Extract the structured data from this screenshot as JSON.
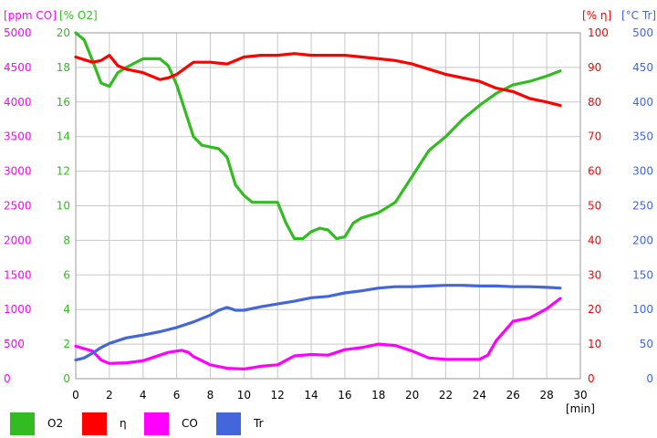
{
  "chart_data": {
    "type": "line",
    "xlabel": "[min]",
    "x_ticks": [
      "0",
      "2",
      "4",
      "6",
      "8",
      "10",
      "12",
      "14",
      "16",
      "18",
      "20",
      "22",
      "24",
      "26",
      "28",
      "30"
    ],
    "xlim": [
      0,
      30
    ],
    "axes": [
      {
        "id": "co",
        "label": "[ppm CO]",
        "color": "#ff00ff",
        "min": 0,
        "max": 5000,
        "ticks": [
          "0",
          "500",
          "1000",
          "1500",
          "2000",
          "2500",
          "3000",
          "3500",
          "4000",
          "4500",
          "5000"
        ]
      },
      {
        "id": "o2",
        "label": "[% O2]",
        "color": "#33bb22",
        "min": 0,
        "max": 20,
        "ticks": [
          "0",
          "2",
          "4",
          "6",
          "8",
          "10",
          "12",
          "14",
          "16",
          "18",
          "20"
        ]
      },
      {
        "id": "eta",
        "label": "[% η]",
        "color": "#ff0000",
        "min": 0,
        "max": 100,
        "ticks": [
          "0",
          "10",
          "20",
          "30",
          "40",
          "50",
          "60",
          "70",
          "80",
          "90",
          "100"
        ]
      },
      {
        "id": "tr",
        "label": "[°C Tr]",
        "color": "#4466dd",
        "min": 0,
        "max": 500,
        "ticks": [
          "0",
          "50",
          "100",
          "150",
          "200",
          "250",
          "300",
          "350",
          "400",
          "450",
          "500"
        ]
      }
    ],
    "series": [
      {
        "name": "O2",
        "axis": "o2",
        "color": "#33bb22",
        "x": [
          0,
          0.5,
          1,
          1.5,
          2,
          2.5,
          3,
          4,
          5,
          5.5,
          6,
          6.5,
          7,
          7.5,
          8,
          8.5,
          9,
          9.5,
          10,
          10.5,
          11,
          11.5,
          12,
          12.5,
          13,
          13.5,
          14,
          14.5,
          15,
          15.5,
          16,
          16.5,
          17,
          18,
          19,
          20,
          21,
          22,
          23,
          24,
          25,
          26,
          27,
          28,
          28.8
        ],
        "y": [
          20,
          19.6,
          18.4,
          17.1,
          16.9,
          17.7,
          18.0,
          18.5,
          18.5,
          18.1,
          17.0,
          15.5,
          14.0,
          13.5,
          13.4,
          13.3,
          12.8,
          11.2,
          10.6,
          10.2,
          10.2,
          10.2,
          10.2,
          9.0,
          8.1,
          8.1,
          8.5,
          8.7,
          8.6,
          8.1,
          8.2,
          9.0,
          9.3,
          9.6,
          10.2,
          11.7,
          13.2,
          14.0,
          15.0,
          15.8,
          16.5,
          17.0,
          17.2,
          17.5,
          17.8
        ]
      },
      {
        "name": "η",
        "axis": "eta",
        "color": "#ff0000",
        "x": [
          0,
          1,
          1.5,
          2,
          2.5,
          3,
          4,
          5,
          5.5,
          6,
          7,
          8,
          9,
          10,
          11,
          12,
          13,
          14,
          16,
          18,
          19,
          20,
          21,
          22,
          23,
          24,
          25,
          26,
          27,
          28,
          28.8
        ],
        "y": [
          93,
          91.5,
          92,
          93.5,
          90.5,
          89.5,
          88.5,
          86.5,
          87,
          88,
          91.5,
          91.5,
          91,
          93,
          93.5,
          93.5,
          94,
          93.5,
          93.5,
          92.5,
          92,
          91,
          89.5,
          88,
          87,
          86,
          84,
          83,
          81,
          80,
          79
        ]
      },
      {
        "name": "CO",
        "axis": "co",
        "color": "#ff00ff",
        "x": [
          0,
          1,
          1.5,
          2,
          3,
          4,
          5,
          5.5,
          6,
          6.3,
          6.7,
          7,
          8,
          9,
          10,
          11,
          12,
          13,
          14,
          15,
          16,
          17,
          18,
          19,
          20,
          21,
          22,
          23,
          24,
          24.5,
          25,
          26,
          27,
          28,
          28.8
        ],
        "y": [
          470,
          400,
          270,
          220,
          230,
          260,
          340,
          380,
          400,
          410,
          380,
          320,
          200,
          150,
          140,
          180,
          200,
          330,
          350,
          340,
          420,
          450,
          500,
          480,
          400,
          300,
          280,
          280,
          280,
          340,
          550,
          830,
          880,
          1010,
          1160
        ]
      },
      {
        "name": "Tr",
        "axis": "tr",
        "color": "#4466dd",
        "x": [
          0,
          0.5,
          1,
          1.5,
          2,
          3,
          4,
          5,
          6,
          7,
          8,
          8.5,
          9,
          9.5,
          10,
          11,
          12,
          13,
          14,
          15,
          16,
          17,
          18,
          19,
          20,
          21,
          22,
          23,
          24,
          25,
          26,
          27,
          28,
          28.8
        ],
        "y": [
          27,
          30,
          37,
          45,
          51,
          59,
          63,
          68,
          74,
          82,
          92,
          99,
          103,
          99,
          99,
          104,
          108,
          112,
          117,
          119,
          124,
          127,
          131,
          133,
          133,
          134,
          135,
          135,
          134,
          134,
          133,
          133,
          132,
          131
        ]
      }
    ]
  }
}
